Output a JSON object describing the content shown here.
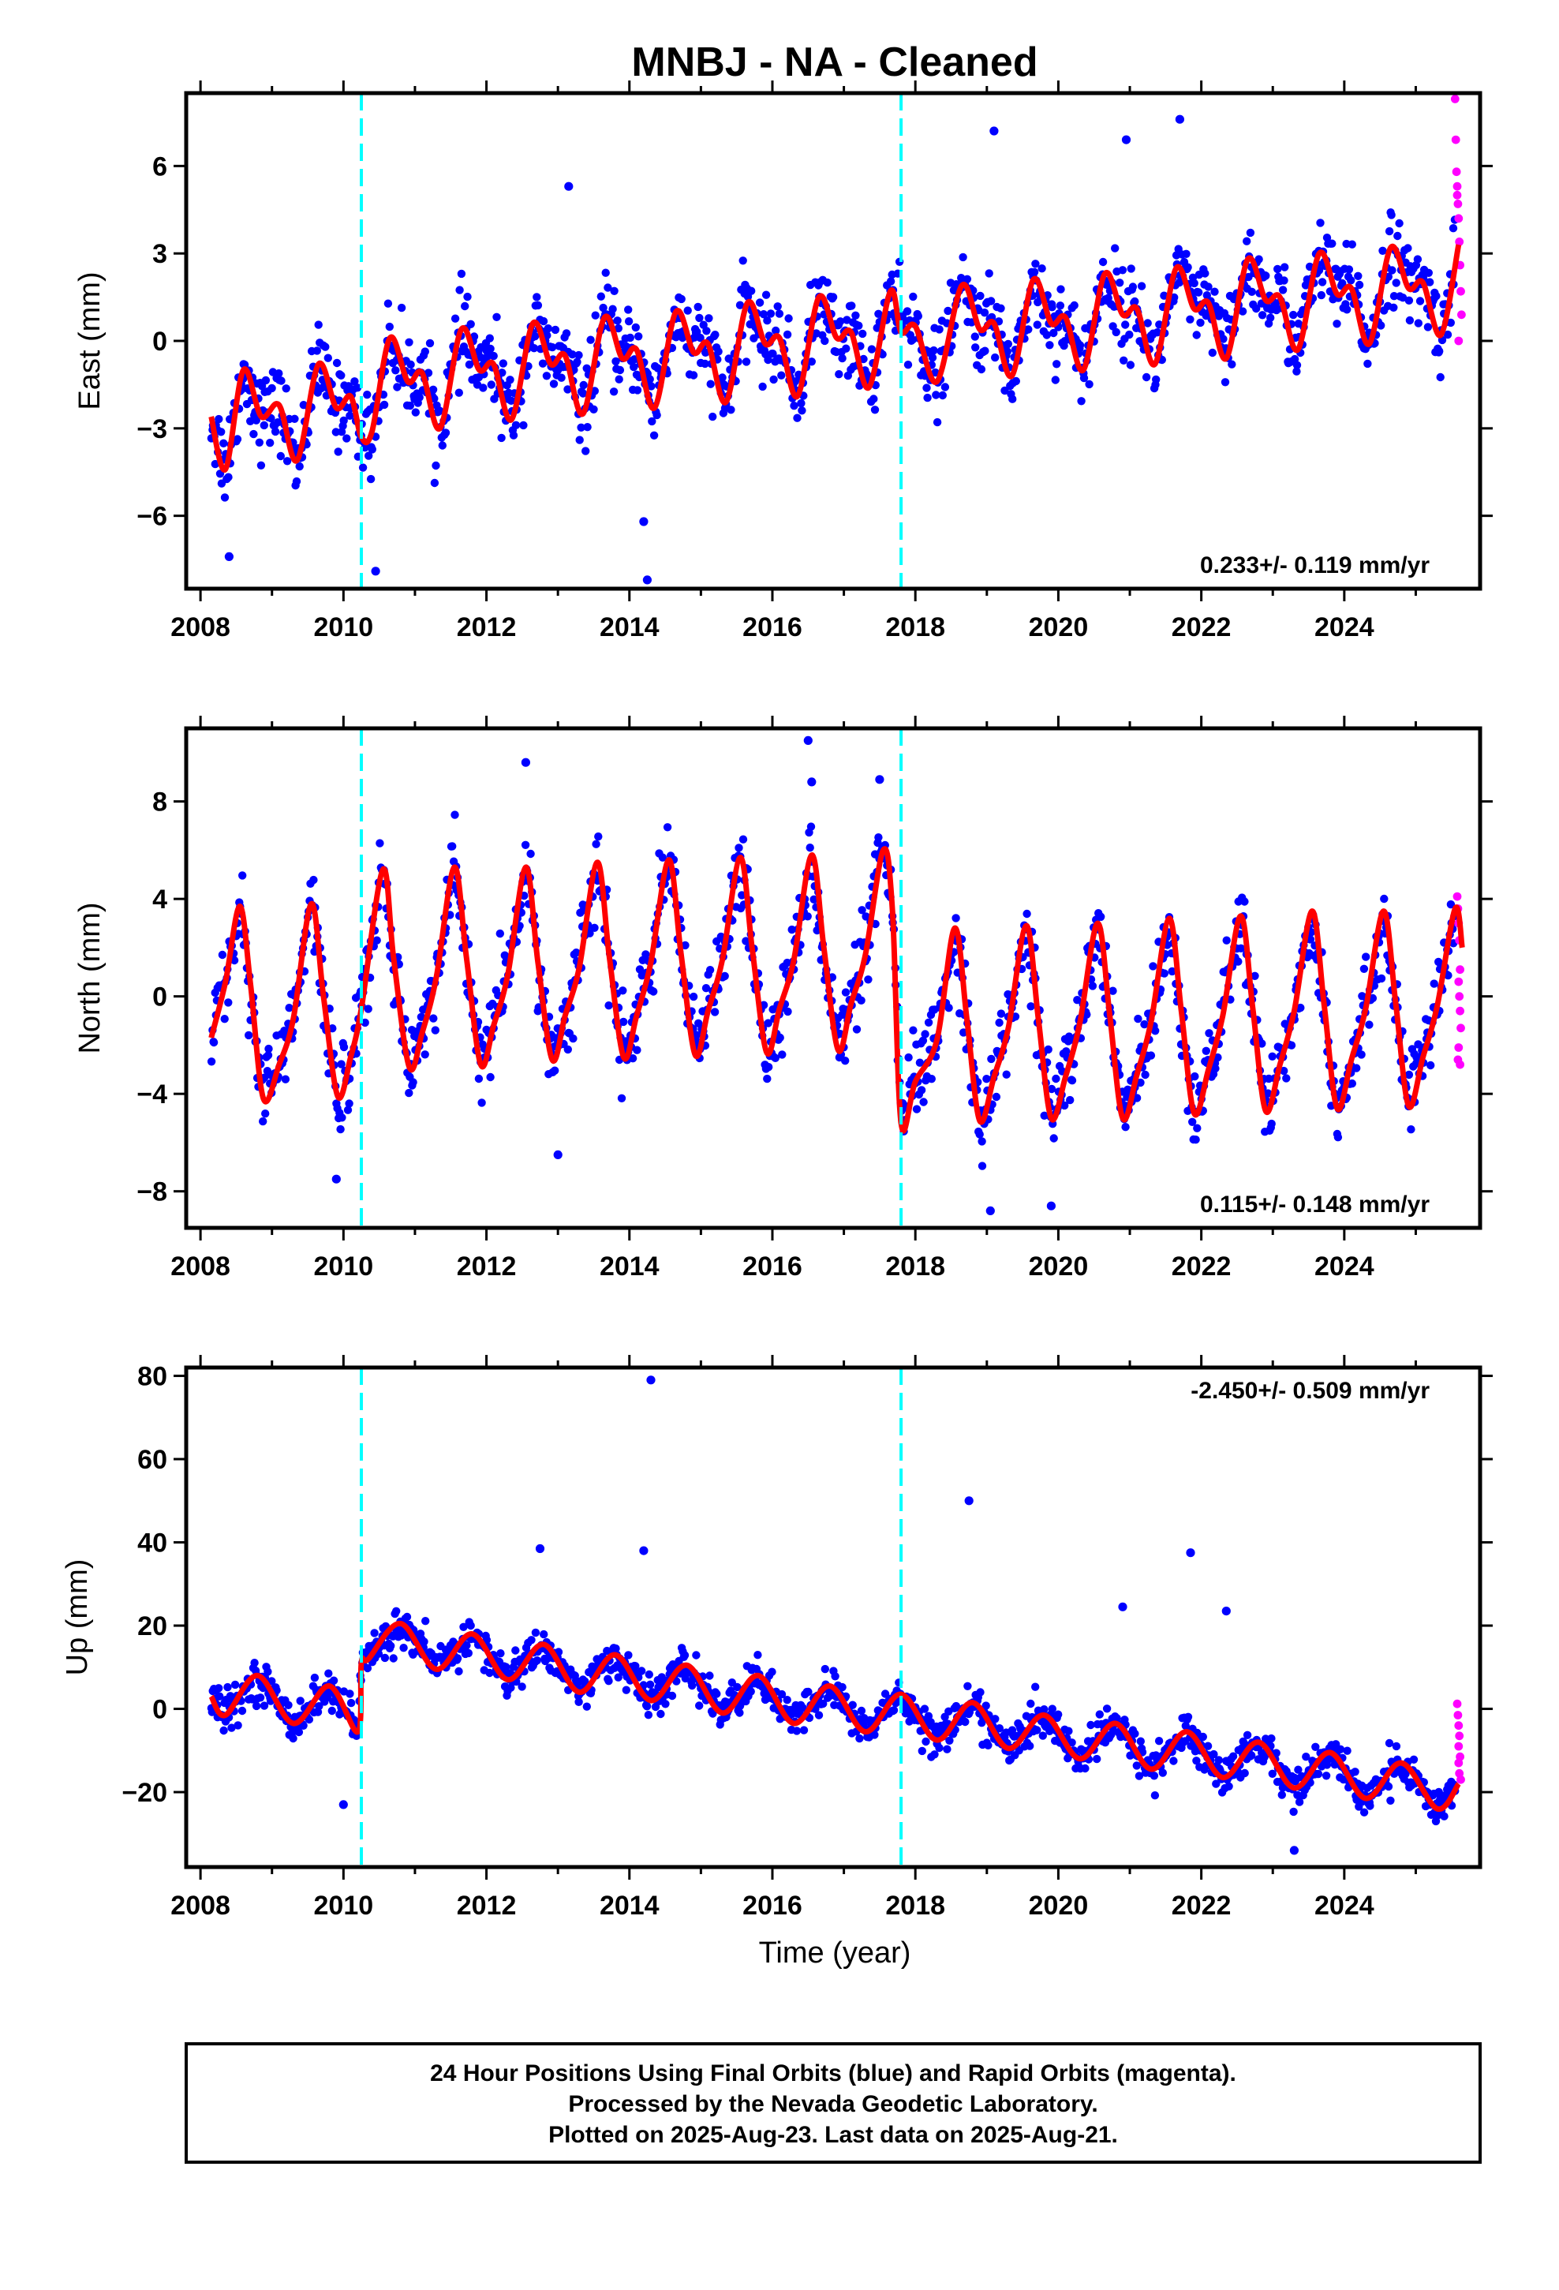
{
  "title": "MNBJ  - NA - Cleaned",
  "x_axis_label": "Time (year)",
  "footer": {
    "line1": "24 Hour Positions Using Final Orbits (blue) and Rapid Orbits (magenta).",
    "line2": "Processed by the Nevada Geodetic Laboratory.",
    "line3": "Plotted on 2025-Aug-23. Last data on 2025-Aug-21."
  },
  "colors": {
    "final_orbits": "#0000ff",
    "rapid_orbits": "#ff00ff",
    "model_fit": "#ff0000",
    "event_lines": "#00ffff"
  },
  "chart_data": [
    {
      "type": "scatter",
      "panel": "east",
      "ylabel": "East (mm)",
      "rate_text": "0.233+/- 0.119 mm/yr",
      "xlim": [
        2007.8,
        2025.9
      ],
      "ylim": [
        -8.5,
        8.5
      ],
      "xticks": [
        2008,
        2010,
        2012,
        2014,
        2016,
        2018,
        2020,
        2022,
        2024
      ],
      "yticks": [
        -6,
        -3,
        0,
        3,
        6
      ],
      "event_lines": [
        2010.25,
        2017.8
      ],
      "model_fit": [
        [
          2008.15,
          -2.6
        ],
        [
          2008.35,
          -4.4
        ],
        [
          2008.6,
          -1.0
        ],
        [
          2008.85,
          -2.6
        ],
        [
          2009.1,
          -2.2
        ],
        [
          2009.35,
          -4.1
        ],
        [
          2009.65,
          -0.8
        ],
        [
          2009.9,
          -2.3
        ],
        [
          2010.1,
          -1.9
        ],
        [
          2010.25,
          -3.3
        ],
        [
          2010.4,
          -3.1
        ],
        [
          2010.65,
          0.1
        ],
        [
          2010.9,
          -1.4
        ],
        [
          2011.1,
          -1.1
        ],
        [
          2011.35,
          -3.0
        ],
        [
          2011.65,
          0.4
        ],
        [
          2011.9,
          -1.0
        ],
        [
          2012.1,
          -0.8
        ],
        [
          2012.35,
          -2.7
        ],
        [
          2012.65,
          0.6
        ],
        [
          2012.9,
          -0.8
        ],
        [
          2013.1,
          -0.5
        ],
        [
          2013.35,
          -2.5
        ],
        [
          2013.65,
          0.8
        ],
        [
          2013.9,
          -0.6
        ],
        [
          2014.1,
          -0.3
        ],
        [
          2014.35,
          -2.3
        ],
        [
          2014.65,
          1.0
        ],
        [
          2014.9,
          -0.4
        ],
        [
          2015.1,
          -0.1
        ],
        [
          2015.35,
          -2.1
        ],
        [
          2015.65,
          1.3
        ],
        [
          2015.9,
          -0.1
        ],
        [
          2016.1,
          0.1
        ],
        [
          2016.35,
          -1.9
        ],
        [
          2016.65,
          1.5
        ],
        [
          2016.9,
          0.1
        ],
        [
          2017.1,
          0.3
        ],
        [
          2017.35,
          -1.6
        ],
        [
          2017.65,
          1.7
        ],
        [
          2017.8,
          0.3
        ],
        [
          2018.0,
          0.5
        ],
        [
          2018.3,
          -1.4
        ],
        [
          2018.65,
          1.9
        ],
        [
          2018.9,
          0.4
        ],
        [
          2019.1,
          0.6
        ],
        [
          2019.35,
          -1.2
        ],
        [
          2019.65,
          2.1
        ],
        [
          2019.9,
          0.6
        ],
        [
          2020.1,
          0.8
        ],
        [
          2020.35,
          -1.0
        ],
        [
          2020.65,
          2.3
        ],
        [
          2020.9,
          0.9
        ],
        [
          2021.1,
          1.1
        ],
        [
          2021.35,
          -0.8
        ],
        [
          2021.65,
          2.5
        ],
        [
          2021.9,
          1.1
        ],
        [
          2022.1,
          1.3
        ],
        [
          2022.35,
          -0.6
        ],
        [
          2022.65,
          2.8
        ],
        [
          2022.9,
          1.4
        ],
        [
          2023.1,
          1.5
        ],
        [
          2023.35,
          -0.3
        ],
        [
          2023.65,
          3.0
        ],
        [
          2023.9,
          1.6
        ],
        [
          2024.1,
          1.8
        ],
        [
          2024.35,
          -0.1
        ],
        [
          2024.65,
          3.2
        ],
        [
          2024.9,
          1.8
        ],
        [
          2025.1,
          2.0
        ],
        [
          2025.35,
          0.2
        ],
        [
          2025.6,
          3.3
        ]
      ],
      "outliers": [
        [
          2013.15,
          5.3
        ],
        [
          2014.25,
          -8.2
        ],
        [
          2014.2,
          -6.2
        ],
        [
          2019.1,
          7.2
        ],
        [
          2020.95,
          6.9
        ],
        [
          2021.7,
          7.6
        ],
        [
          2008.4,
          -7.4
        ],
        [
          2010.45,
          -7.9
        ]
      ],
      "rapid": [
        [
          2025.55,
          8.3
        ],
        [
          2025.56,
          6.9
        ],
        [
          2025.57,
          5.8
        ],
        [
          2025.58,
          5.3
        ],
        [
          2025.59,
          4.7
        ],
        [
          2025.6,
          4.2
        ],
        [
          2025.61,
          3.4
        ],
        [
          2025.62,
          2.6
        ],
        [
          2025.63,
          1.7
        ],
        [
          2025.64,
          0.9
        ],
        [
          2025.6,
          0.0
        ],
        [
          2025.58,
          5.0
        ]
      ]
    },
    {
      "type": "scatter",
      "panel": "north",
      "ylabel": "North (mm)",
      "rate_text": "0.115+/- 0.148 mm/yr",
      "xlim": [
        2007.8,
        2025.9
      ],
      "ylim": [
        -9.5,
        11.0
      ],
      "xticks": [
        2008,
        2010,
        2012,
        2014,
        2016,
        2018,
        2020,
        2022,
        2024
      ],
      "yticks": [
        -8,
        -4,
        0,
        4,
        8
      ],
      "event_lines": [
        2010.25,
        2017.8
      ],
      "model_fit": [
        [
          2008.15,
          -1.7
        ],
        [
          2008.35,
          0.6
        ],
        [
          2008.55,
          3.7
        ],
        [
          2008.7,
          0.5
        ],
        [
          2008.88,
          -4.2
        ],
        [
          2009.1,
          -2.8
        ],
        [
          2009.3,
          -0.9
        ],
        [
          2009.55,
          3.8
        ],
        [
          2009.72,
          0.0
        ],
        [
          2009.92,
          -4.1
        ],
        [
          2010.1,
          -2.5
        ],
        [
          2010.25,
          -0.5
        ],
        [
          2010.55,
          5.2
        ],
        [
          2010.7,
          1.6
        ],
        [
          2010.92,
          -2.9
        ],
        [
          2011.1,
          -1.5
        ],
        [
          2011.3,
          0.8
        ],
        [
          2011.55,
          5.3
        ],
        [
          2011.72,
          1.6
        ],
        [
          2011.92,
          -2.8
        ],
        [
          2012.1,
          -1.2
        ],
        [
          2012.3,
          0.9
        ],
        [
          2012.55,
          5.3
        ],
        [
          2012.72,
          1.4
        ],
        [
          2012.92,
          -2.6
        ],
        [
          2013.1,
          -0.8
        ],
        [
          2013.3,
          1.2
        ],
        [
          2013.55,
          5.5
        ],
        [
          2013.72,
          1.6
        ],
        [
          2013.92,
          -2.5
        ],
        [
          2014.1,
          -0.8
        ],
        [
          2014.3,
          1.4
        ],
        [
          2014.55,
          5.6
        ],
        [
          2014.72,
          1.8
        ],
        [
          2014.92,
          -2.4
        ],
        [
          2015.1,
          -0.6
        ],
        [
          2015.3,
          1.5
        ],
        [
          2015.55,
          5.7
        ],
        [
          2015.72,
          1.9
        ],
        [
          2015.92,
          -2.3
        ],
        [
          2016.1,
          -0.5
        ],
        [
          2016.3,
          1.5
        ],
        [
          2016.55,
          5.8
        ],
        [
          2016.72,
          2.0
        ],
        [
          2016.92,
          -2.2
        ],
        [
          2017.1,
          -0.3
        ],
        [
          2017.3,
          1.7
        ],
        [
          2017.55,
          6.0
        ],
        [
          2017.68,
          3.5
        ],
        [
          2017.8,
          -5.2
        ],
        [
          2018.0,
          -3.5
        ],
        [
          2018.3,
          -1.8
        ],
        [
          2018.55,
          2.8
        ],
        [
          2018.72,
          -0.9
        ],
        [
          2018.9,
          -5.1
        ],
        [
          2019.1,
          -3.3
        ],
        [
          2019.3,
          -1.3
        ],
        [
          2019.55,
          2.9
        ],
        [
          2019.72,
          -0.9
        ],
        [
          2019.9,
          -5.0
        ],
        [
          2020.1,
          -3.3
        ],
        [
          2020.3,
          -1.1
        ],
        [
          2020.55,
          3.0
        ],
        [
          2020.72,
          -0.8
        ],
        [
          2020.9,
          -5.0
        ],
        [
          2021.1,
          -3.2
        ],
        [
          2021.3,
          -1.0
        ],
        [
          2021.55,
          3.2
        ],
        [
          2021.72,
          -0.6
        ],
        [
          2021.9,
          -4.8
        ],
        [
          2022.1,
          -3.0
        ],
        [
          2022.3,
          -0.8
        ],
        [
          2022.55,
          3.3
        ],
        [
          2022.72,
          -0.5
        ],
        [
          2022.9,
          -4.7
        ],
        [
          2023.1,
          -2.8
        ],
        [
          2023.3,
          -0.6
        ],
        [
          2023.55,
          3.5
        ],
        [
          2023.72,
          -0.4
        ],
        [
          2023.9,
          -4.6
        ],
        [
          2024.1,
          -2.6
        ],
        [
          2024.3,
          -0.5
        ],
        [
          2024.55,
          3.5
        ],
        [
          2024.72,
          -0.3
        ],
        [
          2024.9,
          -4.5
        ],
        [
          2025.1,
          -2.5
        ],
        [
          2025.3,
          -0.4
        ],
        [
          2025.55,
          3.6
        ],
        [
          2025.65,
          2.0
        ]
      ],
      "outliers": [
        [
          2016.5,
          10.5
        ],
        [
          2012.55,
          9.6
        ],
        [
          2016.55,
          8.8
        ],
        [
          2017.5,
          8.9
        ],
        [
          2013.0,
          -6.5
        ],
        [
          2019.05,
          -8.8
        ],
        [
          2019.9,
          -8.6
        ],
        [
          2009.9,
          -7.5
        ]
      ],
      "rapid": [
        [
          2025.58,
          4.1
        ],
        [
          2025.59,
          3.6
        ],
        [
          2025.6,
          3.0
        ],
        [
          2025.61,
          2.3
        ],
        [
          2025.62,
          1.1
        ],
        [
          2025.6,
          0.6
        ],
        [
          2025.61,
          0.0
        ],
        [
          2025.62,
          -0.6
        ],
        [
          2025.63,
          -1.3
        ],
        [
          2025.6,
          -2.1
        ],
        [
          2025.59,
          -2.6
        ],
        [
          2025.62,
          -2.8
        ]
      ]
    },
    {
      "type": "scatter",
      "panel": "up",
      "ylabel": "Up (mm)",
      "rate_text": "-2.450+/- 0.509 mm/yr",
      "xlim": [
        2007.8,
        2025.9
      ],
      "ylim": [
        -38,
        82
      ],
      "xticks": [
        2008,
        2010,
        2012,
        2014,
        2016,
        2018,
        2020,
        2022,
        2024
      ],
      "yticks": [
        -20,
        0,
        20,
        40,
        60,
        80
      ],
      "event_lines": [
        2010.25,
        2017.8
      ],
      "model_fit": [
        [
          2008.15,
          3.0
        ],
        [
          2008.35,
          -1.5
        ],
        [
          2008.8,
          8.0
        ],
        [
          2009.3,
          -3.5
        ],
        [
          2009.8,
          5.5
        ],
        [
          2010.2,
          -5.5
        ],
        [
          2010.25,
          11.0
        ],
        [
          2010.35,
          12.0
        ],
        [
          2010.8,
          20.5
        ],
        [
          2011.3,
          9.5
        ],
        [
          2011.8,
          18.0
        ],
        [
          2012.3,
          7.0
        ],
        [
          2012.8,
          15.5
        ],
        [
          2013.3,
          4.0
        ],
        [
          2013.8,
          13.0
        ],
        [
          2014.3,
          2.0
        ],
        [
          2014.8,
          10.5
        ],
        [
          2015.3,
          -1.0
        ],
        [
          2015.8,
          8.0
        ],
        [
          2016.3,
          -3.5
        ],
        [
          2016.8,
          5.5
        ],
        [
          2017.3,
          -5.5
        ],
        [
          2017.8,
          3.5
        ],
        [
          2018.3,
          -7.5
        ],
        [
          2018.8,
          1.5
        ],
        [
          2019.3,
          -9.5
        ],
        [
          2019.8,
          -1.5
        ],
        [
          2020.3,
          -12.0
        ],
        [
          2020.8,
          -3.5
        ],
        [
          2021.3,
          -14.5
        ],
        [
          2021.8,
          -5.5
        ],
        [
          2022.3,
          -16.5
        ],
        [
          2022.8,
          -8.0
        ],
        [
          2023.3,
          -19.0
        ],
        [
          2023.8,
          -10.5
        ],
        [
          2024.3,
          -21.5
        ],
        [
          2024.8,
          -13.0
        ],
        [
          2025.3,
          -24.0
        ],
        [
          2025.6,
          -18.0
        ]
      ],
      "outliers": [
        [
          2014.3,
          79.0
        ],
        [
          2018.75,
          50.0
        ],
        [
          2021.85,
          37.5
        ],
        [
          2014.2,
          38.0
        ],
        [
          2012.75,
          38.5
        ],
        [
          2020.9,
          24.5
        ],
        [
          2022.35,
          23.5
        ],
        [
          2010.0,
          -23.0
        ],
        [
          2023.3,
          -34.0
        ]
      ],
      "rapid": [
        [
          2025.58,
          1.2
        ],
        [
          2025.59,
          -1.5
        ],
        [
          2025.6,
          -4.0
        ],
        [
          2025.61,
          -6.5
        ],
        [
          2025.6,
          -9.0
        ],
        [
          2025.62,
          -11.5
        ],
        [
          2025.6,
          -13.0
        ],
        [
          2025.61,
          -15.5
        ],
        [
          2025.63,
          -17.0
        ]
      ]
    }
  ]
}
